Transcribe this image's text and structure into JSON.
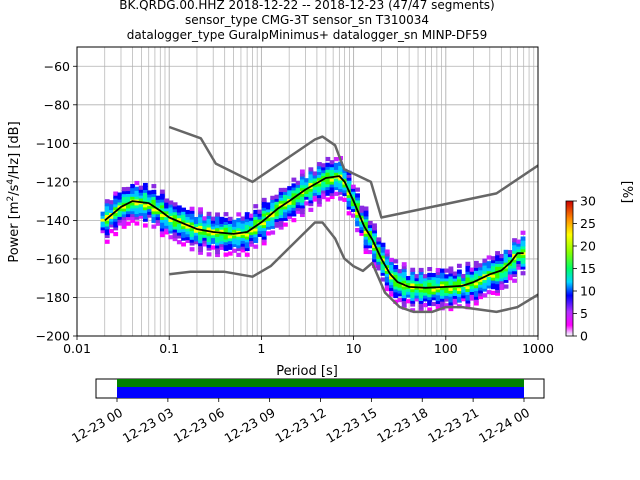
{
  "chart_data": {
    "type": "heatmap",
    "title_lines": [
      "BK.QRDG.00.HHZ   2018-12-22 -- 2018-12-23  (47/47 segments)",
      "sensor_type CMG-3T sensor_sn T310034",
      "datalogger_type GuralpMinimus+ datalogger_sn MINP-DF59"
    ],
    "xlabel": "Period [s]",
    "ylabel": "Power [m²/s⁴/Hz] [dB]",
    "ylabel_parts": {
      "a": "Power [m",
      "b": "2",
      "c": "/s",
      "d": "4",
      "e": "/Hz] [dB]"
    },
    "x_scale": "log",
    "xlim": [
      0.01,
      1000
    ],
    "ylim": [
      -200,
      -50
    ],
    "x_ticks": [
      {
        "value": 0.01,
        "label": "0.01"
      },
      {
        "value": 0.1,
        "label": "0.1"
      },
      {
        "value": 1,
        "label": "1"
      },
      {
        "value": 10,
        "label": "10"
      },
      {
        "value": 100,
        "label": "100"
      },
      {
        "value": 1000,
        "label": "1000"
      }
    ],
    "y_ticks": [
      {
        "value": -60,
        "label": "−60"
      },
      {
        "value": -80,
        "label": "−80"
      },
      {
        "value": -100,
        "label": "−100"
      },
      {
        "value": -120,
        "label": "−120"
      },
      {
        "value": -140,
        "label": "−140"
      },
      {
        "value": -160,
        "label": "−160"
      },
      {
        "value": -180,
        "label": "−180"
      },
      {
        "value": -200,
        "label": "−200"
      }
    ],
    "grid": true,
    "noise_model_high": [
      [
        0.1,
        -91.5
      ],
      [
        0.22,
        -97.4
      ],
      [
        0.32,
        -110.5
      ],
      [
        0.8,
        -120
      ],
      [
        3.8,
        -98
      ],
      [
        4.6,
        -96.5
      ],
      [
        6.3,
        -101
      ],
      [
        7.9,
        -113.5
      ],
      [
        15.4,
        -120
      ],
      [
        20,
        -138.5
      ],
      [
        354.8,
        -126
      ],
      [
        1000,
        -111.5
      ]
    ],
    "noise_model_low": [
      [
        0.1,
        -168
      ],
      [
        0.17,
        -166.7
      ],
      [
        0.4,
        -166.7
      ],
      [
        0.8,
        -169.2
      ],
      [
        1.26,
        -163.7
      ],
      [
        3.8,
        -141.1
      ],
      [
        4.6,
        -141.1
      ],
      [
        6.3,
        -149.4
      ],
      [
        7.9,
        -159.7
      ],
      [
        10,
        -163.8
      ],
      [
        12.6,
        -166.2
      ],
      [
        15.9,
        -162.1
      ],
      [
        21.9,
        -177.5
      ],
      [
        31.6,
        -185
      ],
      [
        45,
        -187.5
      ],
      [
        70.8,
        -187.5
      ],
      [
        100,
        -185
      ],
      [
        150,
        -185
      ],
      [
        354.8,
        -187.5
      ],
      [
        600,
        -185
      ],
      [
        1000,
        -178.5
      ]
    ],
    "mode_curve": [
      [
        0.02,
        -140
      ],
      [
        0.03,
        -133
      ],
      [
        0.04,
        -130
      ],
      [
        0.06,
        -131
      ],
      [
        0.08,
        -135
      ],
      [
        0.1,
        -138.5
      ],
      [
        0.15,
        -142
      ],
      [
        0.2,
        -144.5
      ],
      [
        0.3,
        -146
      ],
      [
        0.5,
        -147
      ],
      [
        0.7,
        -146
      ],
      [
        1,
        -141
      ],
      [
        1.5,
        -134
      ],
      [
        2,
        -130
      ],
      [
        3,
        -124
      ],
      [
        5,
        -118
      ],
      [
        7,
        -117
      ],
      [
        8,
        -120
      ],
      [
        10,
        -130
      ],
      [
        13,
        -143
      ],
      [
        16,
        -150
      ],
      [
        20,
        -160
      ],
      [
        25,
        -168
      ],
      [
        30,
        -172
      ],
      [
        40,
        -174.5
      ],
      [
        60,
        -175
      ],
      [
        100,
        -174.5
      ],
      [
        150,
        -174
      ],
      [
        200,
        -172
      ],
      [
        300,
        -168
      ],
      [
        400,
        -166
      ],
      [
        500,
        -162
      ],
      [
        600,
        -157
      ],
      [
        700,
        -157
      ]
    ],
    "segments_per_day": 47,
    "colorbar": {
      "label": "[%]",
      "min": 0,
      "max": 30,
      "ticks": [
        0,
        5,
        10,
        15,
        20,
        25,
        30
      ]
    },
    "time_axis": {
      "ticks": [
        "12-23 00",
        "12-23 03",
        "12-23 06",
        "12-23 09",
        "12-23 12",
        "12-23 15",
        "12-23 18",
        "12-23 21",
        "12-24 00"
      ],
      "coverage": "full"
    }
  }
}
